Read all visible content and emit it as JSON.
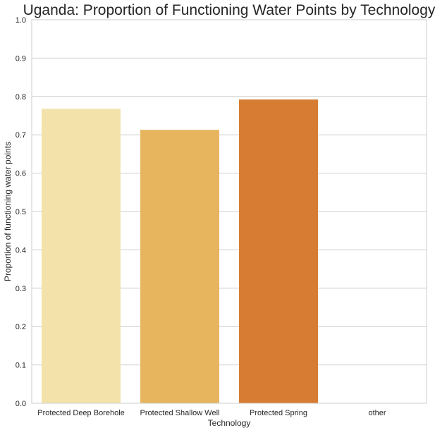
{
  "chart_data": {
    "type": "bar",
    "title": "Uganda: Proportion of Functioning Water Points by Technology",
    "xlabel": "Technology",
    "ylabel": "Proportion of functioning water points",
    "categories": [
      "Protected Deep Borehole",
      "Protected Shallow Well",
      "Protected Spring",
      "other"
    ],
    "values": [
      0.768,
      0.713,
      0.792,
      0.0
    ],
    "colors": [
      "#f3e3aa",
      "#e8b55f",
      "#d77d33",
      "#c94a1a"
    ],
    "ylim": [
      0,
      1.0
    ],
    "yticks": [
      "0.0",
      "0.1",
      "0.2",
      "0.3",
      "0.4",
      "0.5",
      "0.6",
      "0.7",
      "0.8",
      "0.9",
      "1.0"
    ],
    "grid": true,
    "legend": "none"
  }
}
